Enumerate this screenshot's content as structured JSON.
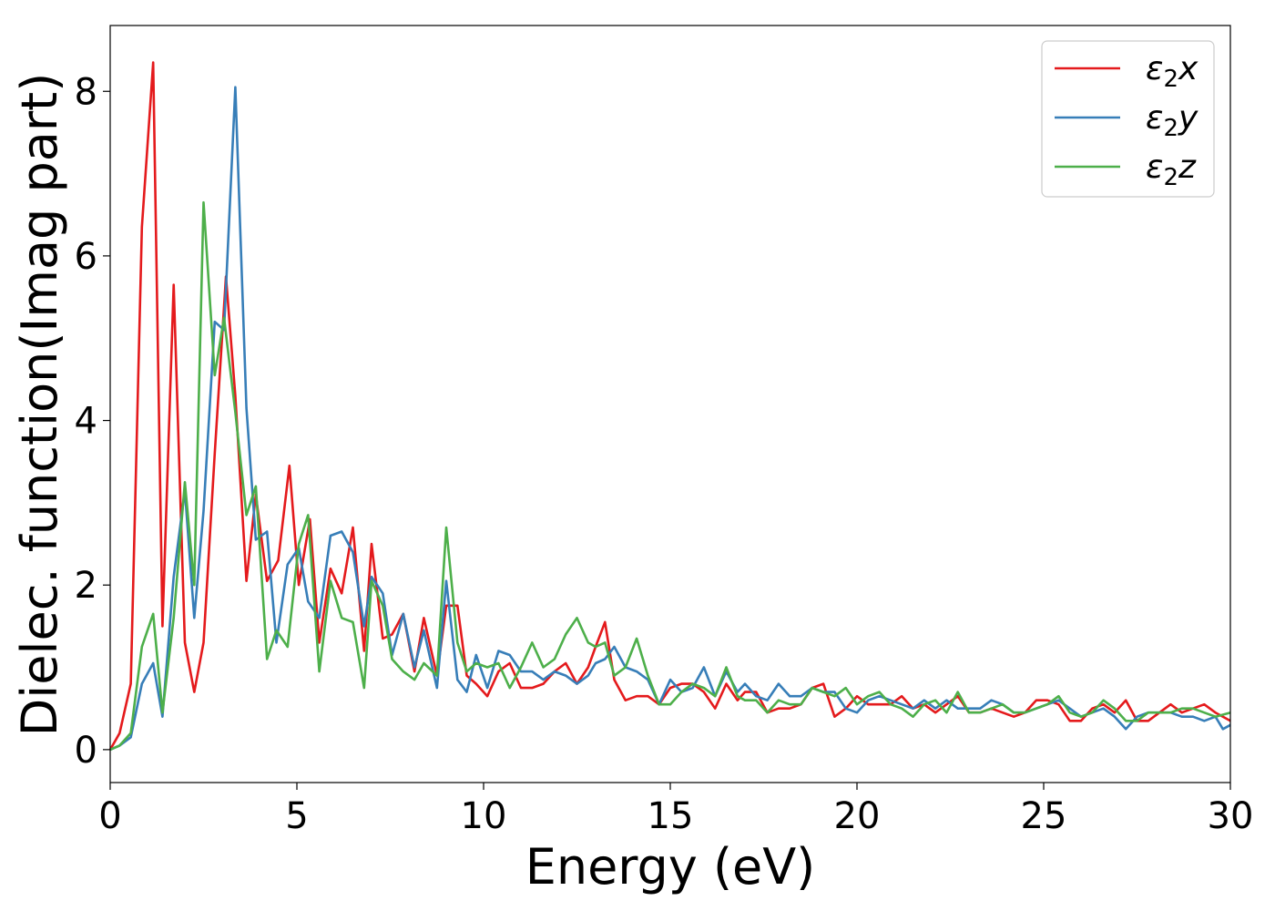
{
  "chart_data": {
    "type": "line",
    "title": "",
    "xlabel": "Energy (eV)",
    "ylabel": "Dielec. function(Imag part)",
    "xlim": [
      0,
      30
    ],
    "ylim": [
      -0.4,
      8.8
    ],
    "xticks": [
      0,
      5,
      10,
      15,
      20,
      25,
      30
    ],
    "xtick_labels": [
      "0",
      "5",
      "10",
      "15",
      "20",
      "25",
      "30"
    ],
    "yticks": [
      0,
      2,
      4,
      6,
      8
    ],
    "ytick_labels": [
      "0",
      "2",
      "4",
      "6",
      "8"
    ],
    "grid": false,
    "legend": "top-right",
    "series": [
      {
        "name": "ε₂x",
        "legend_base": "ε",
        "legend_sub": "2",
        "legend_suffix": "x",
        "color": "#e41a1c",
        "x": [
          0,
          0.25,
          0.55,
          0.85,
          1.15,
          1.4,
          1.7,
          2.0,
          2.25,
          2.5,
          2.8,
          3.1,
          3.35,
          3.65,
          3.9,
          4.2,
          4.5,
          4.8,
          5.05,
          5.35,
          5.6,
          5.9,
          6.2,
          6.5,
          6.8,
          7.0,
          7.3,
          7.55,
          7.85,
          8.15,
          8.4,
          8.75,
          9.0,
          9.3,
          9.55,
          9.8,
          10.1,
          10.4,
          10.7,
          11.0,
          11.3,
          11.6,
          11.9,
          12.2,
          12.5,
          12.8,
          13.0,
          13.25,
          13.5,
          13.8,
          14.1,
          14.4,
          14.7,
          15.0,
          15.3,
          15.6,
          15.9,
          16.2,
          16.5,
          16.8,
          17.0,
          17.3,
          17.6,
          17.9,
          18.2,
          18.5,
          18.8,
          19.1,
          19.4,
          19.7,
          20.0,
          20.3,
          20.6,
          20.9,
          21.2,
          21.5,
          21.8,
          22.1,
          22.4,
          22.7,
          23.0,
          23.3,
          23.6,
          23.9,
          24.2,
          24.5,
          24.8,
          25.1,
          25.4,
          25.7,
          26.0,
          26.3,
          26.6,
          26.9,
          27.2,
          27.5,
          27.8,
          28.1,
          28.4,
          28.7,
          29.0,
          29.3,
          29.6,
          30.0
        ],
        "y": [
          0.0,
          0.2,
          0.8,
          6.35,
          8.35,
          1.5,
          5.65,
          1.3,
          0.7,
          1.3,
          3.6,
          5.75,
          4.3,
          2.05,
          3.1,
          2.05,
          2.3,
          3.45,
          2.0,
          2.8,
          1.3,
          2.2,
          1.9,
          2.7,
          1.2,
          2.5,
          1.35,
          1.4,
          1.65,
          0.95,
          1.6,
          0.9,
          1.75,
          1.75,
          0.9,
          0.8,
          0.65,
          0.95,
          1.05,
          0.75,
          0.75,
          0.8,
          0.95,
          1.05,
          0.8,
          1.0,
          1.25,
          1.55,
          0.85,
          0.6,
          0.65,
          0.65,
          0.55,
          0.75,
          0.8,
          0.8,
          0.7,
          0.5,
          0.8,
          0.6,
          0.7,
          0.7,
          0.45,
          0.5,
          0.5,
          0.55,
          0.75,
          0.8,
          0.4,
          0.5,
          0.65,
          0.55,
          0.55,
          0.55,
          0.65,
          0.5,
          0.55,
          0.45,
          0.55,
          0.65,
          0.45,
          0.45,
          0.5,
          0.45,
          0.4,
          0.45,
          0.6,
          0.6,
          0.55,
          0.35,
          0.35,
          0.5,
          0.55,
          0.45,
          0.6,
          0.35,
          0.35,
          0.45,
          0.55,
          0.45,
          0.5,
          0.55,
          0.45,
          0.35
        ]
      },
      {
        "name": "ε₂y",
        "legend_base": "ε",
        "legend_sub": "2",
        "legend_suffix": "y",
        "color": "#377eb8",
        "x": [
          0,
          0.25,
          0.55,
          0.85,
          1.15,
          1.4,
          1.7,
          2.0,
          2.25,
          2.5,
          2.8,
          3.05,
          3.35,
          3.65,
          3.9,
          4.2,
          4.45,
          4.75,
          5.05,
          5.3,
          5.6,
          5.9,
          6.2,
          6.5,
          6.8,
          7.0,
          7.3,
          7.55,
          7.85,
          8.15,
          8.4,
          8.75,
          9.0,
          9.3,
          9.55,
          9.8,
          10.1,
          10.4,
          10.7,
          11.0,
          11.3,
          11.6,
          11.9,
          12.2,
          12.5,
          12.8,
          13.0,
          13.25,
          13.5,
          13.8,
          14.1,
          14.4,
          14.7,
          15.0,
          15.3,
          15.6,
          15.9,
          16.2,
          16.5,
          16.8,
          17.0,
          17.3,
          17.6,
          17.9,
          18.2,
          18.5,
          18.8,
          19.1,
          19.4,
          19.7,
          20.0,
          20.3,
          20.6,
          20.9,
          21.2,
          21.5,
          21.8,
          22.1,
          22.4,
          22.7,
          23.0,
          23.3,
          23.6,
          23.9,
          24.2,
          24.5,
          24.8,
          25.1,
          25.4,
          25.7,
          26.0,
          26.3,
          26.6,
          26.9,
          27.2,
          27.5,
          27.8,
          28.1,
          28.4,
          28.7,
          29.0,
          29.3,
          29.6,
          29.8,
          30.0
        ],
        "y": [
          0.0,
          0.05,
          0.15,
          0.8,
          1.05,
          0.4,
          2.1,
          3.15,
          1.6,
          2.9,
          5.2,
          5.1,
          8.05,
          4.15,
          2.55,
          2.65,
          1.3,
          2.25,
          2.45,
          1.8,
          1.6,
          2.6,
          2.65,
          2.4,
          1.5,
          2.1,
          1.9,
          1.15,
          1.65,
          1.0,
          1.45,
          0.75,
          2.05,
          0.85,
          0.7,
          1.15,
          0.75,
          1.2,
          1.15,
          0.95,
          0.95,
          0.85,
          0.95,
          0.9,
          0.8,
          0.9,
          1.05,
          1.1,
          1.25,
          1.0,
          0.95,
          0.85,
          0.55,
          0.85,
          0.7,
          0.75,
          1.0,
          0.65,
          0.95,
          0.7,
          0.8,
          0.65,
          0.6,
          0.8,
          0.65,
          0.65,
          0.75,
          0.7,
          0.7,
          0.5,
          0.45,
          0.6,
          0.65,
          0.6,
          0.55,
          0.5,
          0.6,
          0.5,
          0.6,
          0.5,
          0.5,
          0.5,
          0.6,
          0.55,
          0.45,
          0.45,
          0.5,
          0.55,
          0.6,
          0.5,
          0.4,
          0.45,
          0.5,
          0.4,
          0.25,
          0.4,
          0.45,
          0.45,
          0.45,
          0.4,
          0.4,
          0.35,
          0.4,
          0.25,
          0.3
        ]
      },
      {
        "name": "ε₂z",
        "legend_base": "ε",
        "legend_sub": "2",
        "legend_suffix": "z",
        "color": "#4daf4a",
        "x": [
          0,
          0.25,
          0.55,
          0.85,
          1.15,
          1.4,
          1.7,
          2.0,
          2.25,
          2.5,
          2.8,
          3.05,
          3.35,
          3.65,
          3.9,
          4.2,
          4.45,
          4.75,
          5.05,
          5.3,
          5.6,
          5.9,
          6.2,
          6.5,
          6.8,
          7.0,
          7.3,
          7.55,
          7.85,
          8.15,
          8.4,
          8.75,
          9.0,
          9.3,
          9.55,
          9.8,
          10.1,
          10.4,
          10.7,
          11.0,
          11.3,
          11.6,
          11.9,
          12.2,
          12.5,
          12.8,
          13.0,
          13.25,
          13.5,
          13.8,
          14.1,
          14.4,
          14.7,
          15.0,
          15.3,
          15.6,
          15.9,
          16.2,
          16.5,
          16.8,
          17.0,
          17.3,
          17.6,
          17.9,
          18.2,
          18.5,
          18.8,
          19.1,
          19.4,
          19.7,
          20.0,
          20.3,
          20.6,
          20.9,
          21.2,
          21.5,
          21.8,
          22.1,
          22.4,
          22.7,
          23.0,
          23.3,
          23.6,
          23.9,
          24.2,
          24.5,
          24.8,
          25.1,
          25.4,
          25.7,
          26.0,
          26.3,
          26.6,
          26.9,
          27.2,
          27.5,
          27.8,
          28.1,
          28.4,
          28.7,
          29.0,
          29.3,
          29.6,
          30.0
        ],
        "y": [
          0.0,
          0.05,
          0.2,
          1.25,
          1.65,
          0.45,
          1.6,
          3.25,
          2.0,
          6.65,
          4.55,
          5.25,
          4.1,
          2.85,
          3.2,
          1.1,
          1.45,
          1.25,
          2.5,
          2.85,
          0.95,
          2.05,
          1.6,
          1.55,
          0.75,
          2.05,
          1.75,
          1.1,
          0.95,
          0.85,
          1.05,
          0.9,
          2.7,
          1.3,
          0.95,
          1.05,
          1.0,
          1.05,
          0.75,
          1.0,
          1.3,
          1.0,
          1.1,
          1.4,
          1.6,
          1.3,
          1.25,
          1.3,
          0.9,
          1.0,
          1.35,
          0.9,
          0.55,
          0.55,
          0.7,
          0.8,
          0.75,
          0.65,
          1.0,
          0.65,
          0.6,
          0.6,
          0.45,
          0.6,
          0.55,
          0.55,
          0.75,
          0.7,
          0.65,
          0.75,
          0.55,
          0.65,
          0.7,
          0.55,
          0.5,
          0.4,
          0.55,
          0.6,
          0.45,
          0.7,
          0.45,
          0.45,
          0.5,
          0.55,
          0.45,
          0.45,
          0.5,
          0.55,
          0.65,
          0.45,
          0.4,
          0.45,
          0.6,
          0.5,
          0.35,
          0.35,
          0.45,
          0.45,
          0.45,
          0.5,
          0.5,
          0.45,
          0.4,
          0.45
        ]
      }
    ]
  }
}
